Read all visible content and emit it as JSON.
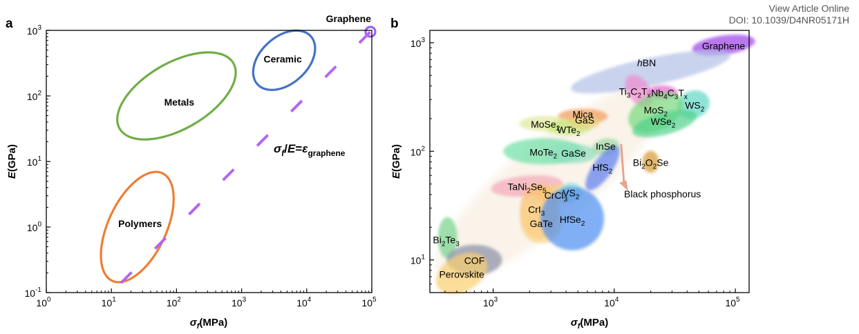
{
  "header": {
    "view_article": "View Article Online",
    "doi": "DOI: 10.1039/D4NR05171H"
  },
  "chart_data": [
    {
      "type": "scatter",
      "panel_label": "a",
      "xscale": "log",
      "yscale": "log",
      "xlim": [
        1,
        100000
      ],
      "ylim": [
        0.1,
        1000
      ],
      "xlabel": {
        "main": "σ",
        "sub": "f",
        "rest": "(MPa)"
      },
      "ylabel": {
        "main": "E",
        "rest": "(GPa)"
      },
      "xticks": [
        {
          "value": 1,
          "base": "10",
          "exp": "0"
        },
        {
          "value": 10,
          "base": "10",
          "exp": "1"
        },
        {
          "value": 100,
          "base": "10",
          "exp": "2"
        },
        {
          "value": 1000,
          "base": "10",
          "exp": "3"
        },
        {
          "value": 10000,
          "base": "10",
          "exp": "4"
        },
        {
          "value": 100000,
          "base": "10",
          "exp": "5"
        }
      ],
      "yticks": [
        {
          "value": 0.1,
          "base": "10",
          "exp": "-1"
        },
        {
          "value": 1,
          "base": "10",
          "exp": "0"
        },
        {
          "value": 10,
          "base": "10",
          "exp": "1"
        },
        {
          "value": 100,
          "base": "10",
          "exp": "2"
        },
        {
          "value": 1000,
          "base": "10",
          "exp": "3"
        }
      ],
      "regions": [
        {
          "name": "Polymers",
          "color": "#ee7d31",
          "x_center": 25,
          "y_center": 1.0,
          "x_range": [
            6,
            80
          ],
          "y_range": [
            0.12,
            8
          ]
        },
        {
          "name": "Metals",
          "color": "#70ad47",
          "x_center": 100,
          "y_center": 100,
          "x_range": [
            15,
            800
          ],
          "y_range": [
            25,
            600
          ]
        },
        {
          "name": "Ceramic",
          "color": "#4472c4",
          "x_center": 4500,
          "y_center": 350,
          "x_range": [
            1800,
            20000
          ],
          "y_range": [
            70,
            1100
          ]
        },
        {
          "name": "Graphene",
          "color": "#9d5ff5",
          "x": 100000,
          "y": 1000
        }
      ],
      "reference_line": {
        "label": {
          "sigma": "σ",
          "sub_f": "f",
          "slash": "/",
          "E": "E",
          "eq": "=",
          "eps": "ε",
          "sub_eps": "graphene"
        },
        "color": "#b566f0",
        "style": "dashed",
        "slope_ratio": 0.01,
        "x_range": [
          14,
          130000
        ]
      }
    },
    {
      "type": "scatter",
      "panel_label": "b",
      "xscale": "log",
      "yscale": "log",
      "xlim": [
        300,
        130000
      ],
      "ylim": [
        5,
        1300
      ],
      "xlabel": {
        "main": "σ",
        "sub": "f",
        "rest": "(MPa)"
      },
      "ylabel": {
        "main": "E",
        "rest": "(GPa)"
      },
      "xticks": [
        {
          "value": 1000,
          "base": "10",
          "exp": "3"
        },
        {
          "value": 10000,
          "base": "10",
          "exp": "4"
        },
        {
          "value": 100000,
          "base": "10",
          "exp": "5"
        }
      ],
      "yticks": [
        {
          "value": 10,
          "base": "10",
          "exp": "1"
        },
        {
          "value": 100,
          "base": "10",
          "exp": "2"
        },
        {
          "value": 1000,
          "base": "10",
          "exp": "3"
        }
      ],
      "materials": [
        {
          "parts": [
            {
              "t": "Graphene"
            }
          ],
          "x": 80000,
          "y": 950,
          "color": "#9b40e8"
        },
        {
          "parts": [
            {
              "t": "h",
              "italic": true
            },
            {
              "t": "BN"
            }
          ],
          "x": 20000,
          "y": 540,
          "color": "#b3c1e6"
        },
        {
          "parts": [
            {
              "t": "Ti"
            },
            {
              "t": "3",
              "sub": true
            },
            {
              "t": "C"
            },
            {
              "t": "2",
              "sub": true
            },
            {
              "t": "T"
            },
            {
              "t": "x",
              "sub": true
            }
          ],
          "x": 16000,
          "y": 360,
          "color": "#f08ad2"
        },
        {
          "parts": [
            {
              "t": "Nb"
            },
            {
              "t": "4",
              "sub": true
            },
            {
              "t": "C"
            },
            {
              "t": "3",
              "sub": true
            },
            {
              "t": "T"
            },
            {
              "t": "x",
              "sub": true
            }
          ],
          "x": 25000,
          "y": 350,
          "color": "#e56ad0"
        },
        {
          "parts": [
            {
              "t": "WS"
            },
            {
              "t": "2",
              "sub": true
            }
          ],
          "x": 45000,
          "y": 270,
          "color": "#5ed8c5"
        },
        {
          "parts": [
            {
              "t": "MoS"
            },
            {
              "t": "2",
              "sub": true
            }
          ],
          "x": 22000,
          "y": 230,
          "color": "#7ad97e"
        },
        {
          "parts": [
            {
              "t": "WSe"
            },
            {
              "t": "2",
              "sub": true
            }
          ],
          "x": 26000,
          "y": 180,
          "color": "#4fd28a"
        },
        {
          "parts": [
            {
              "t": "Mica"
            }
          ],
          "x": 5500,
          "y": 210,
          "color": "#f29a5a"
        },
        {
          "parts": [
            {
              "t": "MoSe"
            },
            {
              "t": "2",
              "sub": true
            }
          ],
          "x": 2700,
          "y": 180,
          "color": "#dfe89a"
        },
        {
          "parts": [
            {
              "t": "WTe"
            },
            {
              "t": "2",
              "sub": true
            }
          ],
          "x": 4200,
          "y": 165,
          "color": "#c9e97f"
        },
        {
          "parts": [
            {
              "t": "GaS"
            }
          ],
          "x": 5700,
          "y": 185,
          "color": "#e7d27a"
        },
        {
          "parts": [
            {
              "t": "MoTe"
            },
            {
              "t": "2",
              "sub": true
            }
          ],
          "x": 2600,
          "y": 100,
          "color": "#6fe0a8"
        },
        {
          "parts": [
            {
              "t": "GaSe"
            }
          ],
          "x": 4500,
          "y": 95,
          "color": "#8de0c0"
        },
        {
          "parts": [
            {
              "t": "InSe"
            }
          ],
          "x": 8500,
          "y": 110,
          "color": "#9ed9a4"
        },
        {
          "parts": [
            {
              "t": "HfS"
            },
            {
              "t": "2",
              "sub": true
            }
          ],
          "x": 8000,
          "y": 70,
          "color": "#5b7ef0"
        },
        {
          "parts": [
            {
              "t": "Bi"
            },
            {
              "t": "2",
              "sub": true
            },
            {
              "t": "O"
            },
            {
              "t": "2",
              "sub": true
            },
            {
              "t": "Se"
            }
          ],
          "x": 20000,
          "y": 80,
          "color": "#d69a2d"
        },
        {
          "parts": [
            {
              "t": "TaNi"
            },
            {
              "t": "2",
              "sub": true
            },
            {
              "t": "Se"
            },
            {
              "t": "5",
              "sub": true
            }
          ],
          "x": 1900,
          "y": 48,
          "color": "#f5a8b8"
        },
        {
          "parts": [
            {
              "t": "CrCl"
            },
            {
              "t": "3",
              "sub": true
            }
          ],
          "x": 3300,
          "y": 40,
          "color": "#f8d27d"
        },
        {
          "parts": [
            {
              "t": "VS"
            },
            {
              "t": "2",
              "sub": true
            }
          ],
          "x": 4400,
          "y": 42,
          "color": "#8fe0dc"
        },
        {
          "parts": [
            {
              "t": "CrI"
            },
            {
              "t": "3",
              "sub": true
            }
          ],
          "x": 2400,
          "y": 28,
          "color": "#f9c070"
        },
        {
          "parts": [
            {
              "t": "GaTe"
            }
          ],
          "x": 2500,
          "y": 22,
          "color": "#fcd48a"
        },
        {
          "parts": [
            {
              "t": "HfSe"
            },
            {
              "t": "2",
              "sub": true
            }
          ],
          "x": 4500,
          "y": 24,
          "color": "#4b8ef2"
        },
        {
          "parts": [
            {
              "t": "Bi"
            },
            {
              "t": "2",
              "sub": true
            },
            {
              "t": "Te"
            },
            {
              "t": "3",
              "sub": true
            }
          ],
          "x": 420,
          "y": 16,
          "color": "#74d38d"
        },
        {
          "parts": [
            {
              "t": "COF"
            }
          ],
          "x": 700,
          "y": 10,
          "color": "#8a8fa6"
        },
        {
          "parts": [
            {
              "t": "Perovskite"
            }
          ],
          "x": 550,
          "y": 7.5,
          "color": "#fbd070"
        }
      ],
      "annotation": {
        "text": "Black phosphorus",
        "arrow_from": {
          "x": 13000,
          "y": 65
        },
        "arrow_to": {
          "x": 17000,
          "y": 35
        }
      }
    }
  ]
}
